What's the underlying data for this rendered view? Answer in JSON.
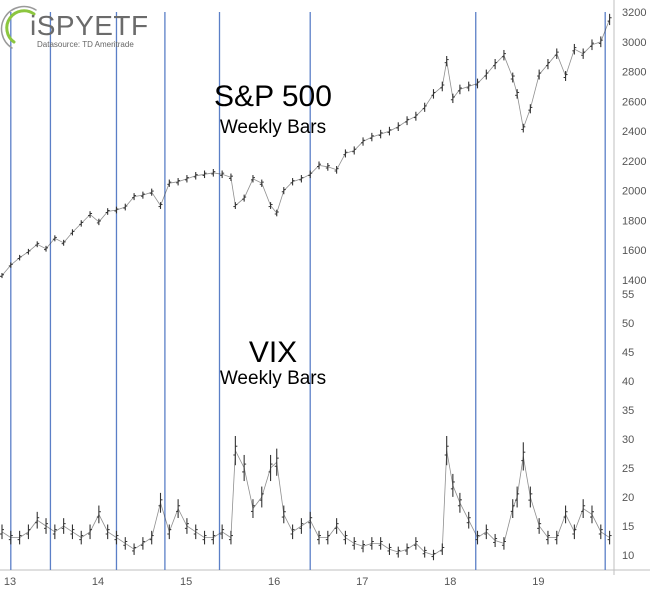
{
  "logo": {
    "name": "iSPYETF",
    "datasource": "Datasource: TD Ameritrade"
  },
  "colors": {
    "bars": "#333333",
    "markers": "#5b7fc7",
    "frame": "#bfbfbf",
    "logo_green": "#8cc63f"
  },
  "chart_data": [
    {
      "type": "bar",
      "title": "S&P 500",
      "subtitle": "Weekly Bars",
      "ylim": [
        1400,
        3200
      ],
      "y_ticks": [
        "1400",
        "1600",
        "1800",
        "2000",
        "2200",
        "2400",
        "2600",
        "2800",
        "3000",
        "3200"
      ],
      "x_ticks": [
        "13",
        "14",
        "15",
        "16",
        "17",
        "18",
        "19"
      ],
      "x_tick_values": [
        2013,
        2014,
        2015,
        2016,
        2017,
        2018,
        2019
      ],
      "xlim": [
        2013.0,
        2019.95
      ],
      "grid": false,
      "points": [
        [
          2013.0,
          1430
        ],
        [
          2013.1,
          1500
        ],
        [
          2013.2,
          1550
        ],
        [
          2013.3,
          1590
        ],
        [
          2013.4,
          1640
        ],
        [
          2013.5,
          1610
        ],
        [
          2013.6,
          1680
        ],
        [
          2013.7,
          1650
        ],
        [
          2013.8,
          1720
        ],
        [
          2013.9,
          1780
        ],
        [
          2014.0,
          1840
        ],
        [
          2014.1,
          1790
        ],
        [
          2014.2,
          1860
        ],
        [
          2014.3,
          1870
        ],
        [
          2014.4,
          1890
        ],
        [
          2014.5,
          1960
        ],
        [
          2014.6,
          1970
        ],
        [
          2014.7,
          1990
        ],
        [
          2014.8,
          1900
        ],
        [
          2014.9,
          2050
        ],
        [
          2015.0,
          2060
        ],
        [
          2015.1,
          2080
        ],
        [
          2015.2,
          2100
        ],
        [
          2015.3,
          2110
        ],
        [
          2015.4,
          2120
        ],
        [
          2015.5,
          2110
        ],
        [
          2015.6,
          2090
        ],
        [
          2015.65,
          1900
        ],
        [
          2015.75,
          1950
        ],
        [
          2015.85,
          2080
        ],
        [
          2015.95,
          2050
        ],
        [
          2016.05,
          1900
        ],
        [
          2016.12,
          1850
        ],
        [
          2016.2,
          2000
        ],
        [
          2016.3,
          2060
        ],
        [
          2016.4,
          2080
        ],
        [
          2016.5,
          2110
        ],
        [
          2016.6,
          2170
        ],
        [
          2016.7,
          2160
        ],
        [
          2016.8,
          2140
        ],
        [
          2016.9,
          2250
        ],
        [
          2017.0,
          2270
        ],
        [
          2017.1,
          2330
        ],
        [
          2017.2,
          2360
        ],
        [
          2017.3,
          2380
        ],
        [
          2017.4,
          2400
        ],
        [
          2017.5,
          2430
        ],
        [
          2017.6,
          2470
        ],
        [
          2017.7,
          2500
        ],
        [
          2017.8,
          2560
        ],
        [
          2017.9,
          2650
        ],
        [
          2018.0,
          2700
        ],
        [
          2018.05,
          2870
        ],
        [
          2018.12,
          2620
        ],
        [
          2018.2,
          2680
        ],
        [
          2018.3,
          2700
        ],
        [
          2018.4,
          2720
        ],
        [
          2018.5,
          2780
        ],
        [
          2018.6,
          2850
        ],
        [
          2018.7,
          2910
        ],
        [
          2018.8,
          2760
        ],
        [
          2018.85,
          2650
        ],
        [
          2018.92,
          2420
        ],
        [
          2019.0,
          2550
        ],
        [
          2019.1,
          2780
        ],
        [
          2019.2,
          2850
        ],
        [
          2019.3,
          2920
        ],
        [
          2019.4,
          2770
        ],
        [
          2019.5,
          2950
        ],
        [
          2019.6,
          2920
        ],
        [
          2019.7,
          2980
        ],
        [
          2019.8,
          3000
        ],
        [
          2019.9,
          3150
        ]
      ]
    },
    {
      "type": "bar",
      "title": "VIX",
      "subtitle": "Weekly Bars",
      "ylim": [
        10,
        55
      ],
      "y_ticks": [
        "10",
        "15",
        "20",
        "25",
        "30",
        "35",
        "40",
        "45",
        "50",
        "55"
      ],
      "x_ticks": [
        "13",
        "14",
        "15",
        "16",
        "17",
        "18",
        "19"
      ],
      "xlim": [
        2013.0,
        2019.95
      ],
      "grid": false,
      "points": [
        [
          2013.0,
          14
        ],
        [
          2013.1,
          13
        ],
        [
          2013.2,
          13
        ],
        [
          2013.3,
          14
        ],
        [
          2013.4,
          16
        ],
        [
          2013.5,
          15
        ],
        [
          2013.6,
          14
        ],
        [
          2013.7,
          15
        ],
        [
          2013.8,
          14
        ],
        [
          2013.9,
          13
        ],
        [
          2014.0,
          14
        ],
        [
          2014.1,
          17
        ],
        [
          2014.2,
          14
        ],
        [
          2014.3,
          13
        ],
        [
          2014.4,
          12
        ],
        [
          2014.5,
          11
        ],
        [
          2014.6,
          12
        ],
        [
          2014.7,
          13
        ],
        [
          2014.8,
          19
        ],
        [
          2014.9,
          14
        ],
        [
          2015.0,
          18
        ],
        [
          2015.1,
          15
        ],
        [
          2015.2,
          14
        ],
        [
          2015.3,
          13
        ],
        [
          2015.4,
          13
        ],
        [
          2015.5,
          14
        ],
        [
          2015.6,
          13
        ],
        [
          2015.65,
          28
        ],
        [
          2015.75,
          25
        ],
        [
          2015.85,
          18
        ],
        [
          2015.95,
          20
        ],
        [
          2016.05,
          25
        ],
        [
          2016.12,
          26
        ],
        [
          2016.2,
          17
        ],
        [
          2016.3,
          14
        ],
        [
          2016.4,
          15
        ],
        [
          2016.5,
          16
        ],
        [
          2016.6,
          13
        ],
        [
          2016.7,
          13
        ],
        [
          2016.8,
          15
        ],
        [
          2016.9,
          13
        ],
        [
          2017.0,
          12
        ],
        [
          2017.1,
          11.5
        ],
        [
          2017.2,
          12
        ],
        [
          2017.3,
          12
        ],
        [
          2017.4,
          11
        ],
        [
          2017.5,
          10.5
        ],
        [
          2017.6,
          11
        ],
        [
          2017.7,
          12
        ],
        [
          2017.8,
          10.5
        ],
        [
          2017.9,
          10
        ],
        [
          2018.0,
          11
        ],
        [
          2018.05,
          28
        ],
        [
          2018.12,
          22
        ],
        [
          2018.2,
          19
        ],
        [
          2018.3,
          16
        ],
        [
          2018.4,
          13
        ],
        [
          2018.5,
          14
        ],
        [
          2018.6,
          12.5
        ],
        [
          2018.7,
          12
        ],
        [
          2018.8,
          18
        ],
        [
          2018.85,
          20
        ],
        [
          2018.92,
          27
        ],
        [
          2019.0,
          20
        ],
        [
          2019.1,
          15
        ],
        [
          2019.2,
          13
        ],
        [
          2019.3,
          13
        ],
        [
          2019.4,
          17
        ],
        [
          2019.5,
          14
        ],
        [
          2019.6,
          18
        ],
        [
          2019.7,
          17
        ],
        [
          2019.8,
          14
        ],
        [
          2019.9,
          13
        ]
      ]
    }
  ],
  "markers": [
    2013.1,
    2013.55,
    2014.3,
    2014.85,
    2015.47,
    2016.5,
    2018.38,
    2019.85
  ]
}
